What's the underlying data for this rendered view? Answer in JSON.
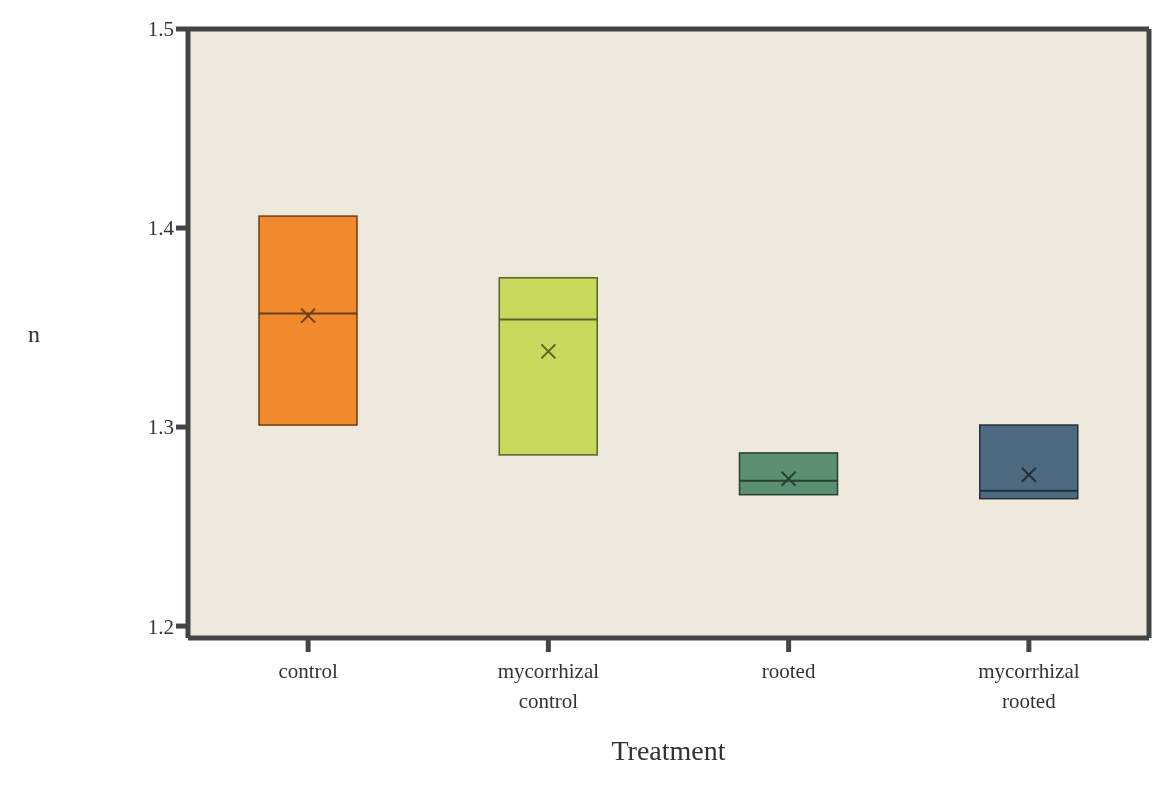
{
  "chart_data": {
    "type": "box",
    "xlabel": "Treatment",
    "ylabel": "n",
    "categories": [
      "control",
      "mycorrhizal control",
      "rooted",
      "mycorrhizal rooted"
    ],
    "colors": [
      "#f08a2c",
      "#c8d85a",
      "#5a8f72",
      "#4e6a80"
    ],
    "boxes": [
      {
        "low": 1.301,
        "q1": 1.301,
        "median": 1.357,
        "q3": 1.406,
        "high": 1.406,
        "mean": 1.356
      },
      {
        "low": 1.286,
        "q1": 1.286,
        "median": 1.354,
        "q3": 1.375,
        "high": 1.375,
        "mean": 1.338
      },
      {
        "low": 1.266,
        "q1": 1.266,
        "median": 1.273,
        "q3": 1.287,
        "high": 1.287,
        "mean": 1.274
      },
      {
        "low": 1.264,
        "q1": 1.264,
        "median": 1.268,
        "q3": 1.301,
        "high": 1.301,
        "mean": 1.276
      }
    ],
    "ylim": [
      1.194,
      1.5
    ],
    "yticks": [
      1.2,
      1.3,
      1.4,
      1.5
    ],
    "grid": false,
    "marker": "cross"
  }
}
